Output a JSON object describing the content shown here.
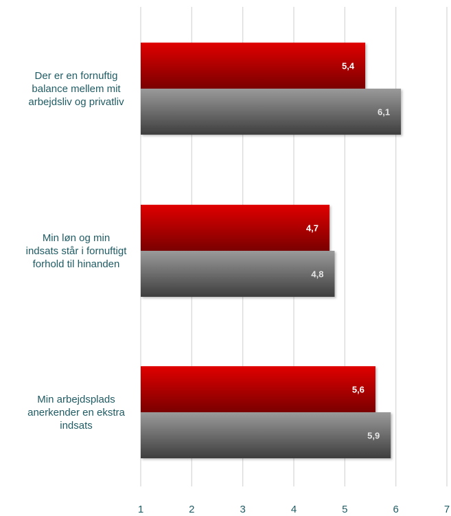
{
  "chart_data": {
    "type": "bar",
    "orientation": "horizontal",
    "categories": [
      [
        "Der er en fornuftig",
        "balance mellem mit",
        "arbejdsliv og privatliv"
      ],
      [
        "Min løn og min",
        "indsats står i fornuftigt",
        "forhold til hinanden"
      ],
      [
        "Min arbejdsplads",
        "anerkender en ekstra",
        "indsats"
      ]
    ],
    "series": [
      {
        "values": [
          5.4,
          4.7,
          5.6
        ],
        "value_labels": [
          "5,4",
          "4,7",
          "5,6"
        ],
        "color": "#c00000",
        "label_color": "#ffffff"
      },
      {
        "values": [
          6.1,
          4.8,
          5.9
        ],
        "value_labels": [
          "6,1",
          "4,8",
          "5,9"
        ],
        "color": "#707070",
        "label_color": "#e6e6e6"
      }
    ],
    "xlim": [
      1,
      7
    ],
    "xticks": [
      "1",
      "2",
      "3",
      "4",
      "5",
      "6",
      "7"
    ],
    "grid": true,
    "legend": "none"
  }
}
